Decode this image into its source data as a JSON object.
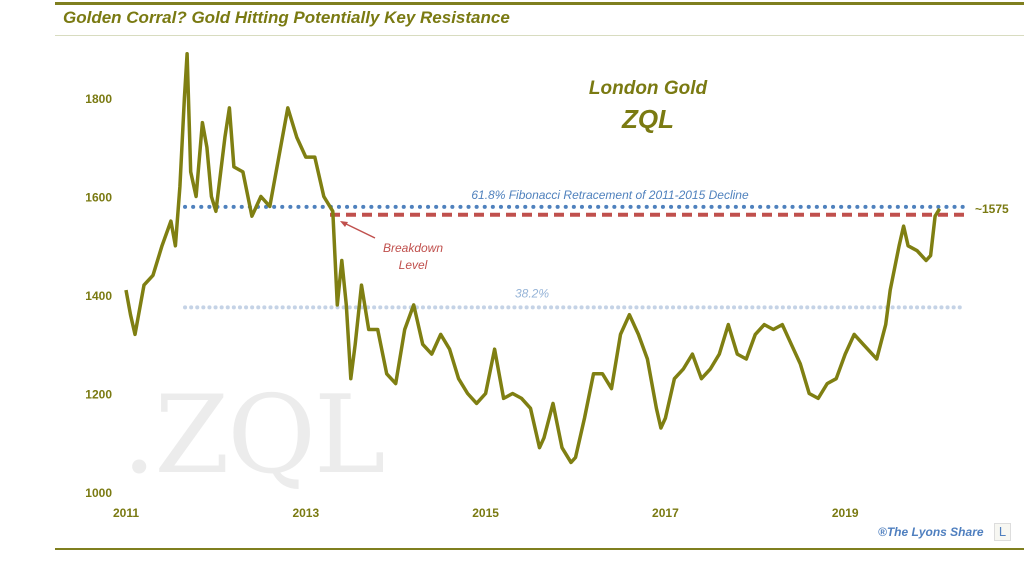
{
  "title": "Golden Corral? Gold Hitting Potentially Key Resistance",
  "credit": "®The Lyons Share",
  "logo_letter": "L",
  "watermark": ".ZQL",
  "chart_data": {
    "type": "line",
    "title": "London Gold",
    "subtitle": "ZQL",
    "xlabel": "",
    "ylabel": "",
    "xlim": [
      2011,
      2020.5
    ],
    "ylim": [
      1000,
      1900
    ],
    "xticks": [
      2011,
      2013,
      2015,
      2017,
      2019
    ],
    "yticks": [
      1000,
      1200,
      1400,
      1600,
      1800
    ],
    "color": "#7f7f12",
    "series": [
      {
        "name": "London Gold",
        "x": [
          2011.0,
          2011.05,
          2011.1,
          2011.2,
          2011.3,
          2011.4,
          2011.5,
          2011.55,
          2011.6,
          2011.65,
          2011.68,
          2011.72,
          2011.78,
          2011.85,
          2011.9,
          2011.95,
          2012.0,
          2012.1,
          2012.15,
          2012.2,
          2012.3,
          2012.4,
          2012.5,
          2012.6,
          2012.7,
          2012.8,
          2012.9,
          2013.0,
          2013.1,
          2013.2,
          2013.3,
          2013.35,
          2013.4,
          2013.45,
          2013.5,
          2013.55,
          2013.62,
          2013.7,
          2013.8,
          2013.9,
          2014.0,
          2014.1,
          2014.2,
          2014.3,
          2014.4,
          2014.5,
          2014.6,
          2014.7,
          2014.8,
          2014.9,
          2015.0,
          2015.1,
          2015.2,
          2015.3,
          2015.4,
          2015.5,
          2015.6,
          2015.65,
          2015.75,
          2015.85,
          2015.95,
          2016.0,
          2016.1,
          2016.2,
          2016.3,
          2016.4,
          2016.5,
          2016.6,
          2016.7,
          2016.8,
          2016.9,
          2016.95,
          2017.0,
          2017.1,
          2017.2,
          2017.3,
          2017.4,
          2017.5,
          2017.6,
          2017.7,
          2017.8,
          2017.9,
          2018.0,
          2018.1,
          2018.2,
          2018.3,
          2018.4,
          2018.5,
          2018.6,
          2018.7,
          2018.8,
          2018.9,
          2019.0,
          2019.1,
          2019.2,
          2019.3,
          2019.35,
          2019.45,
          2019.5,
          2019.6,
          2019.65,
          2019.7,
          2019.8,
          2019.9,
          2019.95,
          2020.0,
          2020.05
        ],
        "y": [
          1410,
          1360,
          1320,
          1420,
          1440,
          1500,
          1550,
          1500,
          1620,
          1800,
          1890,
          1650,
          1600,
          1750,
          1700,
          1600,
          1570,
          1720,
          1780,
          1660,
          1650,
          1560,
          1600,
          1580,
          1680,
          1780,
          1720,
          1680,
          1680,
          1600,
          1570,
          1380,
          1470,
          1380,
          1230,
          1300,
          1420,
          1330,
          1330,
          1240,
          1220,
          1330,
          1380,
          1300,
          1280,
          1320,
          1290,
          1230,
          1200,
          1180,
          1200,
          1290,
          1190,
          1200,
          1190,
          1170,
          1090,
          1110,
          1180,
          1090,
          1060,
          1070,
          1150,
          1240,
          1240,
          1210,
          1320,
          1360,
          1320,
          1270,
          1170,
          1130,
          1150,
          1230,
          1250,
          1280,
          1230,
          1250,
          1280,
          1340,
          1280,
          1270,
          1320,
          1340,
          1330,
          1340,
          1300,
          1260,
          1200,
          1190,
          1220,
          1230,
          1280,
          1320,
          1300,
          1280,
          1270,
          1340,
          1410,
          1500,
          1540,
          1500,
          1490,
          1470,
          1480,
          1560,
          1575
        ]
      }
    ],
    "annotations": {
      "fib618_label": "61.8% Fibonacci Retracement of 2011-2015 Decline",
      "fib618_value": 1575,
      "fib618_text": "~1575",
      "fib382_label": "38.2%",
      "fib382_value": 1375,
      "breakdown_label_1": "Breakdown",
      "breakdown_label_2": "Level",
      "breakdown_value": 1565
    }
  }
}
